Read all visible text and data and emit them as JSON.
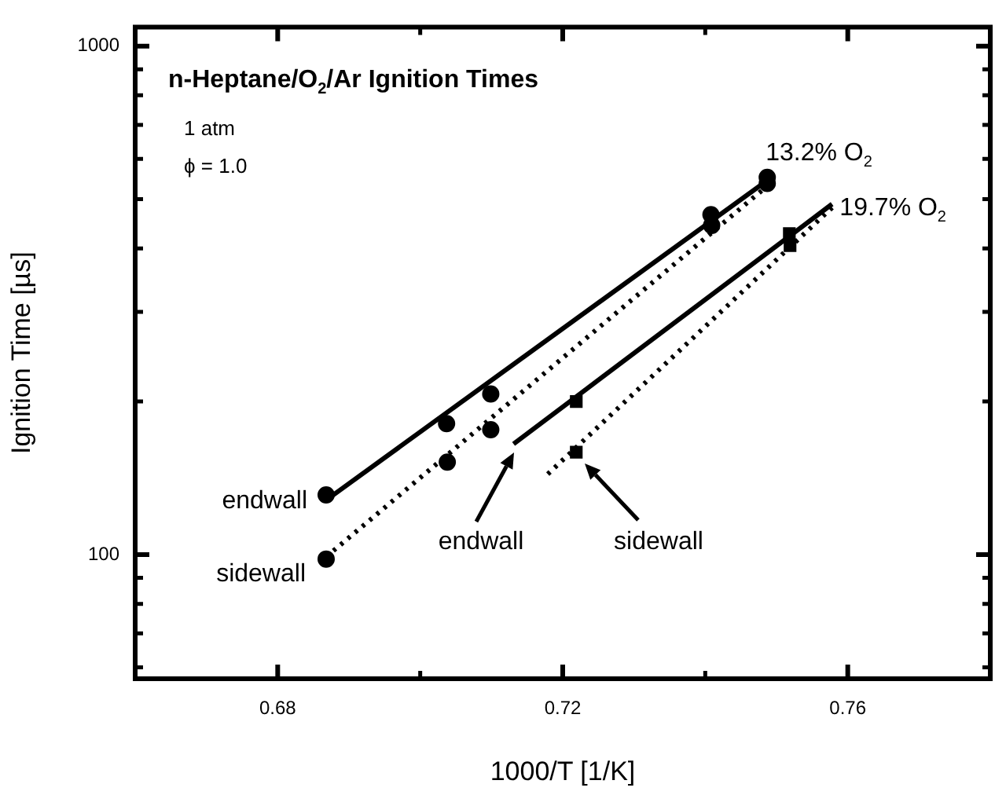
{
  "chart_data": {
    "type": "scatter",
    "title": "n-Heptane/O$_{2}$/Ar Ignition Times",
    "xlabel": "1000/T [1/K]",
    "ylabel": "Ignition Time [µs]",
    "xlim": [
      0.66,
      0.78
    ],
    "xticks": [
      0.68,
      {
        "value": 0.7,
        "label": null
      },
      0.72,
      {
        "value": 0.74,
        "label": null
      },
      0.76
    ],
    "ylim": [
      57,
      1090
    ],
    "yticks": [
      {
        "value": 60,
        "label": null
      },
      {
        "value": 70,
        "label": null
      },
      {
        "value": 80,
        "label": null
      },
      {
        "value": 90,
        "label": null
      },
      100,
      {
        "value": 200,
        "label": null
      },
      {
        "value": 300,
        "label": null
      },
      {
        "value": 400,
        "label": null
      },
      {
        "value": 500,
        "label": null
      },
      {
        "value": 600,
        "label": null
      },
      {
        "value": 700,
        "label": null
      },
      {
        "value": 800,
        "label": null
      },
      {
        "value": 900,
        "label": null
      },
      1000
    ],
    "log": "y",
    "grid": false,
    "legend": false,
    "series": [
      {
        "marker": "circle",
        "color": "#000000",
        "x": [
          0.6868,
          0.7037,
          0.7099,
          0.7408,
          0.7487
        ],
        "values": [
          131,
          181,
          207,
          466,
          552
        ]
      },
      {
        "marker": "circle",
        "color": "#000000",
        "x": [
          0.6868,
          0.7038,
          0.7099,
          0.7409,
          0.7487
        ],
        "values": [
          98,
          152,
          176,
          444,
          537
        ]
      },
      {
        "marker": "square",
        "color": "#000000",
        "x": [
          0.7219,
          0.7518
        ],
        "values": [
          200,
          428
        ]
      },
      {
        "marker": "square",
        "color": "#000000",
        "x": [
          0.7219,
          0.7519
        ],
        "values": [
          159,
          405
        ]
      },
      {
        "type": "line",
        "line_style": "solid",
        "color": "#000000",
        "x": [
          0.6868,
          0.749
        ],
        "values": [
          128,
          548
        ]
      },
      {
        "type": "line",
        "line_style": "dotted",
        "color": "#000000",
        "x": [
          0.6868,
          0.749
        ],
        "values": [
          99,
          535
        ]
      },
      {
        "type": "line",
        "line_style": "solid",
        "color": "#000000",
        "x": [
          0.7131,
          0.7578
        ],
        "values": [
          165,
          489
        ]
      },
      {
        "type": "line",
        "line_style": "dotted",
        "color": "#000000",
        "x": [
          0.7179,
          0.7582
        ],
        "values": [
          144,
          487
        ]
      }
    ],
    "annotations": [
      "1 atm",
      "ϕ = 1.0",
      {
        "text": "13.2% O$_{2}$",
        "x": 0.7487,
        "y": 552
      },
      {
        "text": "19.7% O$_{2}$",
        "x": 0.7582,
        "y": 487
      },
      {
        "text": "endwall",
        "x": 0.6868,
        "y": 131
      },
      {
        "text": "sidewall",
        "x": 0.6868,
        "y": 98
      },
      "endwall",
      "sidewall"
    ]
  }
}
